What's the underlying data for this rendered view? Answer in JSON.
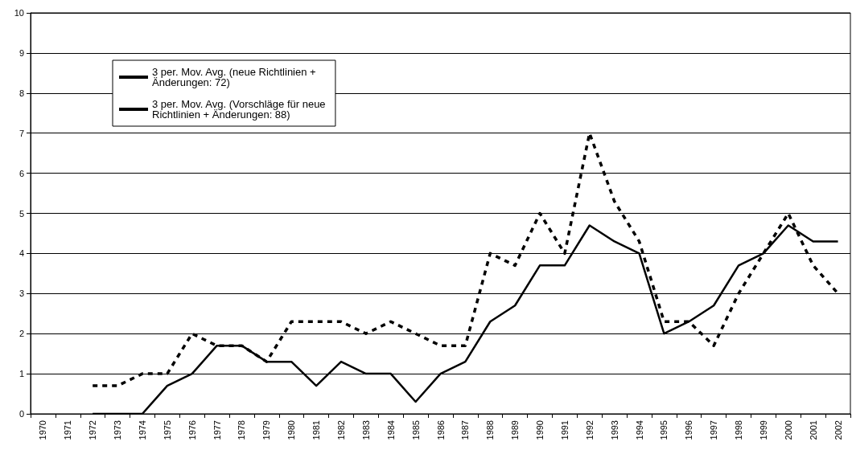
{
  "chart_data": {
    "type": "line",
    "categories": [
      "1970",
      "1971",
      "1972",
      "1973",
      "1974",
      "1975",
      "1976",
      "1977",
      "1978",
      "1979",
      "1980",
      "1981",
      "1982",
      "1983",
      "1984",
      "1985",
      "1986",
      "1987",
      "1988",
      "1989",
      "1990",
      "1991",
      "1992",
      "1993",
      "1994",
      "1995",
      "1996",
      "1997",
      "1998",
      "1999",
      "2000",
      "2001",
      "2002"
    ],
    "series": [
      {
        "name": "3 per. Mov. Avg. (neue Richtlinien + Änderungen: 72)",
        "color": "#000000",
        "line_style": "solid",
        "values": [
          null,
          null,
          0,
          0,
          0,
          0.7,
          1,
          1.7,
          1.7,
          1.3,
          1.3,
          0.7,
          1.3,
          1,
          1,
          0.3,
          1,
          1.3,
          2.3,
          2.7,
          3.7,
          3.7,
          4.7,
          4.3,
          4,
          2,
          2.3,
          2.7,
          3.7,
          4,
          4.7,
          4.3,
          4.3
        ]
      },
      {
        "name": "3 per. Mov. Avg. (Vorschläge für neue Richtlinien + Änderungen: 88)",
        "color": "#000000",
        "line_style": "dashed",
        "values": [
          null,
          null,
          0.7,
          0.7,
          1,
          1,
          2,
          1.7,
          1.7,
          1.3,
          2.3,
          2.3,
          2.3,
          2,
          2.3,
          2,
          1.7,
          1.7,
          4,
          3.7,
          5,
          4,
          7,
          5.3,
          4.3,
          2.3,
          2.3,
          1.7,
          3,
          4,
          5,
          3.7,
          3
        ]
      }
    ],
    "ylim": [
      0,
      10
    ],
    "yticks": [
      0,
      1,
      2,
      3,
      4,
      5,
      6,
      7,
      8,
      9,
      10
    ],
    "grid": "y",
    "legend": "top left",
    "marker": "none"
  }
}
